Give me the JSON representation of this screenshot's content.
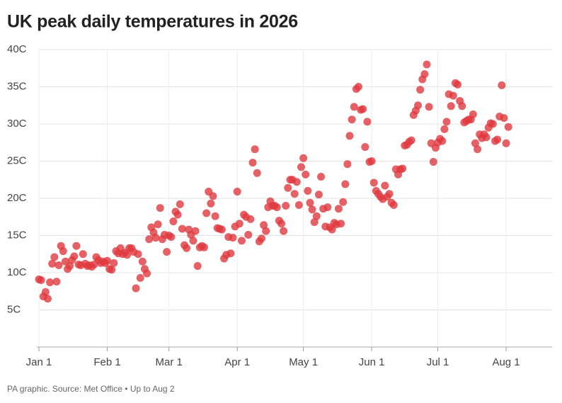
{
  "chart_data": {
    "type": "scatter",
    "title": "UK peak daily temperatures in 2026",
    "footnote": "PA graphic. Source: Met Office • Up to Aug 2",
    "color": "#e0393e",
    "grid": true,
    "xlim": [
      "2026-01-01",
      "2026-08-18"
    ],
    "xticks": [
      {
        "value": "2026-01-01",
        "label": "Jan 1"
      },
      {
        "value": "2026-02-01",
        "label": "Feb 1"
      },
      {
        "value": "2026-03-01",
        "label": "Mar 1"
      },
      {
        "value": "2026-04-01",
        "label": "Apr 1"
      },
      {
        "value": "2026-05-01",
        "label": "May 1"
      },
      {
        "value": "2026-06-01",
        "label": "Jun 1"
      },
      {
        "value": "2026-07-01",
        "label": "Jul 1"
      },
      {
        "value": "2026-08-01",
        "label": "Aug 1"
      }
    ],
    "ylim": [
      0,
      40
    ],
    "yticks": [
      {
        "value": 5,
        "label": "5C"
      },
      {
        "value": 10,
        "label": "10C"
      },
      {
        "value": 15,
        "label": "15C"
      },
      {
        "value": 20,
        "label": "20C"
      },
      {
        "value": 25,
        "label": "25C"
      },
      {
        "value": 30,
        "label": "30C"
      },
      {
        "value": 35,
        "label": "35C"
      },
      {
        "value": 40,
        "label": "40C"
      }
    ],
    "x": [
      "2026-01-01",
      "2026-01-02",
      "2026-01-03",
      "2026-01-04",
      "2026-01-05",
      "2026-01-06",
      "2026-01-07",
      "2026-01-08",
      "2026-01-09",
      "2026-01-10",
      "2026-01-11",
      "2026-01-12",
      "2026-01-13",
      "2026-01-14",
      "2026-01-15",
      "2026-01-16",
      "2026-01-17",
      "2026-01-18",
      "2026-01-19",
      "2026-01-20",
      "2026-01-21",
      "2026-01-22",
      "2026-01-23",
      "2026-01-24",
      "2026-01-25",
      "2026-01-26",
      "2026-01-27",
      "2026-01-28",
      "2026-01-29",
      "2026-01-30",
      "2026-01-31",
      "2026-02-01",
      "2026-02-02",
      "2026-02-03",
      "2026-02-04",
      "2026-02-05",
      "2026-02-06",
      "2026-02-07",
      "2026-02-08",
      "2026-02-09",
      "2026-02-10",
      "2026-02-11",
      "2026-02-12",
      "2026-02-13",
      "2026-02-14",
      "2026-02-15",
      "2026-02-16",
      "2026-02-17",
      "2026-02-18",
      "2026-02-19",
      "2026-02-20",
      "2026-02-21",
      "2026-02-22",
      "2026-02-23",
      "2026-02-24",
      "2026-02-25",
      "2026-02-26",
      "2026-02-27",
      "2026-02-28",
      "2026-03-01",
      "2026-03-02",
      "2026-03-03",
      "2026-03-04",
      "2026-03-05",
      "2026-03-06",
      "2026-03-07",
      "2026-03-08",
      "2026-03-09",
      "2026-03-10",
      "2026-03-11",
      "2026-03-12",
      "2026-03-13",
      "2026-03-14",
      "2026-03-15",
      "2026-03-16",
      "2026-03-17",
      "2026-03-18",
      "2026-03-19",
      "2026-03-20",
      "2026-03-21",
      "2026-03-22",
      "2026-03-23",
      "2026-03-24",
      "2026-03-25",
      "2026-03-26",
      "2026-03-27",
      "2026-03-28",
      "2026-03-29",
      "2026-03-30",
      "2026-03-31",
      "2026-04-01",
      "2026-04-02",
      "2026-04-03",
      "2026-04-04",
      "2026-04-05",
      "2026-04-06",
      "2026-04-07",
      "2026-04-08",
      "2026-04-09",
      "2026-04-10",
      "2026-04-11",
      "2026-04-12",
      "2026-04-13",
      "2026-04-14",
      "2026-04-15",
      "2026-04-16",
      "2026-04-17",
      "2026-04-18",
      "2026-04-19",
      "2026-04-20",
      "2026-04-21",
      "2026-04-22",
      "2026-04-23",
      "2026-04-24",
      "2026-04-25",
      "2026-04-26",
      "2026-04-27",
      "2026-04-28",
      "2026-04-29",
      "2026-04-30",
      "2026-05-01",
      "2026-05-02",
      "2026-05-03",
      "2026-05-04",
      "2026-05-05",
      "2026-05-06",
      "2026-05-07",
      "2026-05-08",
      "2026-05-09",
      "2026-05-10",
      "2026-05-11",
      "2026-05-12",
      "2026-05-13",
      "2026-05-14",
      "2026-05-15",
      "2026-05-16",
      "2026-05-17",
      "2026-05-18",
      "2026-05-19",
      "2026-05-20",
      "2026-05-21",
      "2026-05-22",
      "2026-05-23",
      "2026-05-24",
      "2026-05-25",
      "2026-05-26",
      "2026-05-27",
      "2026-05-28",
      "2026-05-29",
      "2026-05-30",
      "2026-05-31",
      "2026-06-01",
      "2026-06-02",
      "2026-06-03",
      "2026-06-04",
      "2026-06-05",
      "2026-06-06",
      "2026-06-07",
      "2026-06-08",
      "2026-06-09",
      "2026-06-10",
      "2026-06-11",
      "2026-06-12",
      "2026-06-13",
      "2026-06-14",
      "2026-06-15",
      "2026-06-16",
      "2026-06-17",
      "2026-06-18",
      "2026-06-19",
      "2026-06-20",
      "2026-06-21",
      "2026-06-22",
      "2026-06-23",
      "2026-06-24",
      "2026-06-25",
      "2026-06-26",
      "2026-06-27",
      "2026-06-28",
      "2026-06-29",
      "2026-06-30",
      "2026-07-01",
      "2026-07-02",
      "2026-07-03",
      "2026-07-04",
      "2026-07-05",
      "2026-07-06",
      "2026-07-07",
      "2026-07-08",
      "2026-07-09",
      "2026-07-10",
      "2026-07-11",
      "2026-07-12",
      "2026-07-13",
      "2026-07-14",
      "2026-07-15",
      "2026-07-16",
      "2026-07-17",
      "2026-07-18",
      "2026-07-19",
      "2026-07-20",
      "2026-07-21",
      "2026-07-22",
      "2026-07-23",
      "2026-07-24",
      "2026-07-25",
      "2026-07-26",
      "2026-07-27",
      "2026-07-28",
      "2026-07-29",
      "2026-07-30",
      "2026-07-31",
      "2026-08-01",
      "2026-08-02"
    ],
    "values": [
      9.1,
      9.0,
      6.8,
      7.4,
      6.5,
      8.7,
      11.2,
      12.1,
      8.8,
      11.0,
      13.6,
      12.9,
      11.5,
      10.5,
      10.9,
      11.7,
      12.2,
      13.6,
      11.1,
      11.0,
      12.5,
      11.2,
      10.9,
      11.0,
      10.8,
      11.1,
      12.1,
      11.7,
      11.3,
      11.5,
      11.3,
      11.6,
      10.5,
      10.4,
      11.3,
      12.9,
      12.6,
      13.3,
      12.5,
      12.7,
      12.4,
      13.3,
      13.3,
      12.8,
      7.9,
      12.5,
      9.3,
      11.5,
      10.5,
      9.9,
      14.5,
      16.1,
      15.4,
      14.7,
      16.5,
      18.7,
      14.5,
      15.1,
      12.8,
      15.0,
      14.8,
      16.9,
      18.2,
      17.8,
      19.2,
      15.9,
      13.7,
      13.3,
      15.8,
      15.1,
      14.3,
      15.6,
      10.9,
      13.4,
      13.6,
      13.4,
      18.0,
      20.9,
      19.3,
      20.3,
      17.6,
      16.0,
      15.9,
      15.8,
      11.9,
      12.4,
      14.8,
      12.6,
      14.7,
      16.2,
      20.9,
      16.6,
      14.3,
      17.8,
      17.5,
      15.1,
      17.2,
      24.8,
      26.6,
      23.4,
      14.2,
      14.6,
      16.4,
      15.6,
      18.8,
      19.6,
      19.0,
      19.0,
      18.8,
      17.0,
      16.6,
      15.6,
      19.0,
      21.4,
      22.5,
      22.5,
      20.6,
      22.2,
      19.1,
      24.2,
      25.4,
      23.2,
      21.0,
      19.4,
      18.5,
      16.8,
      17.6,
      20.5,
      22.9,
      18.6,
      16.2,
      18.8,
      16.1,
      15.8,
      16.7,
      16.5,
      18.6,
      16.6,
      19.5,
      21.9,
      24.6,
      28.4,
      30.6,
      32.3,
      34.7,
      35.0,
      31.9,
      32.0,
      26.9,
      30.3,
      24.9,
      25.0,
      22.1,
      21.0,
      20.6,
      20.2,
      19.9,
      21.7,
      20.2,
      20.6,
      19.4,
      19.1,
      23.9,
      23.2,
      23.9,
      24.0,
      27.1,
      27.2,
      27.6,
      27.8,
      31.2,
      31.8,
      32.5,
      34.6,
      36.0,
      36.7,
      38.0,
      32.3,
      27.4,
      24.9,
      26.8,
      27.5,
      28.0,
      27.7,
      29.3,
      30.3,
      34.0,
      32.4,
      33.8,
      35.5,
      35.3,
      33.1,
      32.4,
      30.2,
      30.4,
      30.6,
      30.6,
      31.3,
      27.4,
      26.6,
      28.6,
      28.1,
      28.6,
      28.2,
      29.5,
      30.1,
      30.0,
      27.7,
      27.9,
      31.0,
      35.2,
      30.8,
      27.4,
      29.6
    ]
  }
}
